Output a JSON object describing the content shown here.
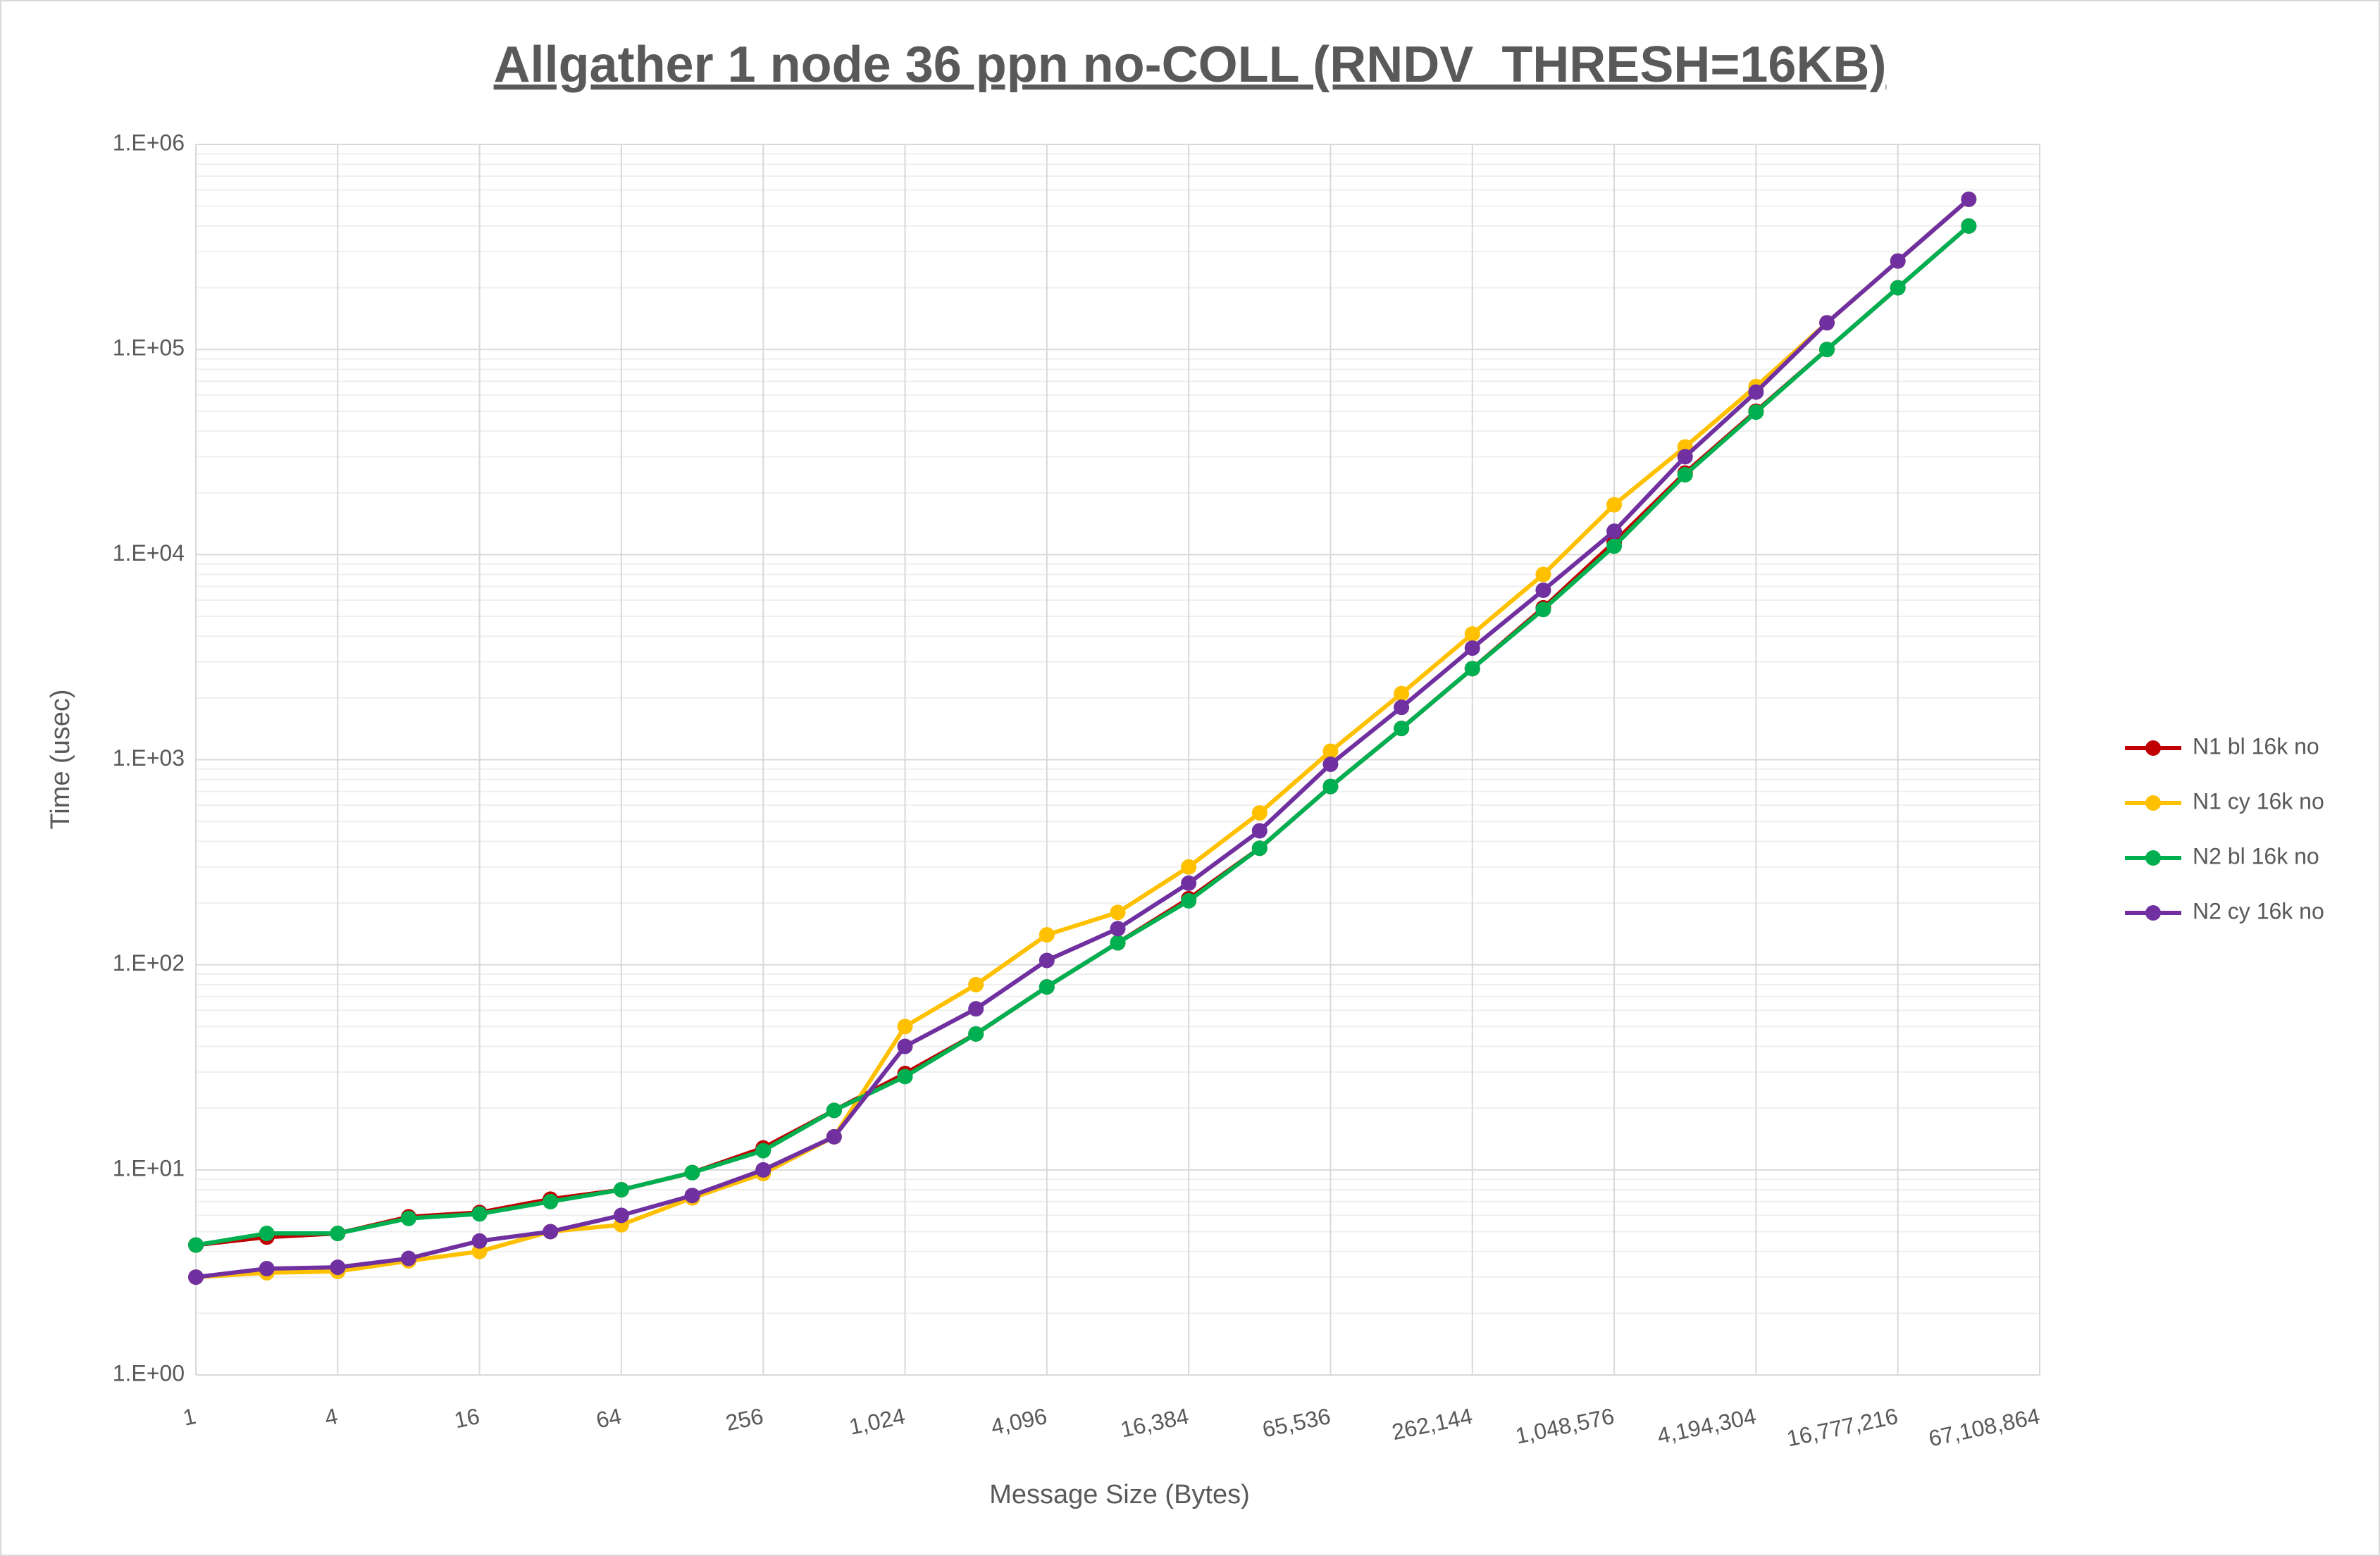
{
  "chart_data": {
    "type": "line",
    "title": "Allgather 1 node 36 ppn no-COLL (RNDV_THRESH=16KB)",
    "x_label": "Message Size (Bytes)",
    "y_label": "Time (usec)",
    "categories": [
      "1",
      null,
      "4",
      null,
      "16",
      null,
      "64",
      null,
      "256",
      null,
      "1,024",
      null,
      "4,096",
      null,
      "16,384",
      null,
      "65,536",
      null,
      "262,144",
      null,
      "1,048,576",
      null,
      "4,194,304",
      null,
      "16,777,216",
      null,
      "67,108,864"
    ],
    "ylim": [
      1,
      1000000
    ],
    "yticks": [
      {
        "value": 1,
        "label": "1.E+00"
      },
      {
        "value": 10,
        "label": "1.E+01"
      },
      {
        "value": 100,
        "label": "1.E+02"
      },
      {
        "value": 1000,
        "label": "1.E+03"
      },
      {
        "value": 10000,
        "label": "1.E+04"
      },
      {
        "value": 100000,
        "label": "1.E+05"
      },
      {
        "value": 1000000,
        "label": "1.E+06"
      }
    ],
    "log_y": true,
    "grid": true,
    "minor_grid": true,
    "legend": "right",
    "series": [
      {
        "name": "N1 bl 16k no",
        "color": "#c00000",
        "values": [
          4.3,
          4.7,
          4.9,
          5.9,
          6.2,
          7.2,
          8.0,
          9.7,
          12.8,
          19.5,
          29.5,
          46,
          78,
          128,
          210,
          370,
          740,
          1420,
          2780,
          5500,
          11500,
          25000,
          50000,
          100000,
          200000,
          400000,
          null
        ]
      },
      {
        "name": "N1 cy 16k no",
        "color": "#ffc000",
        "values": [
          3.0,
          3.15,
          3.2,
          3.6,
          4.0,
          5.0,
          5.4,
          7.3,
          9.6,
          14.5,
          50,
          80,
          140,
          180,
          300,
          550,
          1100,
          2100,
          4100,
          8000,
          17500,
          33500,
          66000,
          135000,
          270000,
          540000,
          null
        ]
      },
      {
        "name": "N2 bl 16k no",
        "color": "#00b050",
        "values": [
          4.3,
          4.9,
          4.9,
          5.8,
          6.1,
          7.0,
          8.0,
          9.7,
          12.4,
          19.5,
          28.5,
          46,
          78,
          128,
          205,
          370,
          740,
          1420,
          2780,
          5400,
          11000,
          24500,
          49500,
          100000,
          200000,
          400000,
          null
        ]
      },
      {
        "name": "N2 cy 16k no",
        "color": "#7030a0",
        "values": [
          3.0,
          3.3,
          3.35,
          3.7,
          4.5,
          5.0,
          6.0,
          7.5,
          10,
          14.5,
          40,
          61,
          105,
          150,
          250,
          450,
          950,
          1800,
          3500,
          6700,
          13000,
          30000,
          62000,
          135000,
          270000,
          540000,
          null
        ]
      }
    ]
  }
}
